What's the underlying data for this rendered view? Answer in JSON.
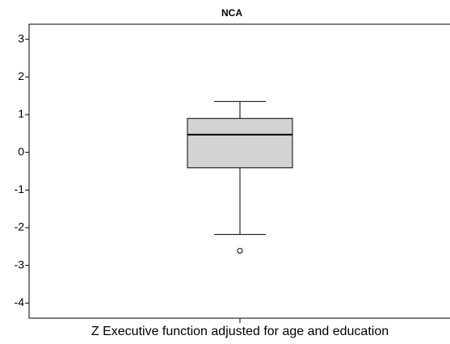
{
  "chart_data": {
    "type": "box",
    "title": "NCA",
    "xlabel": "Z Executive function adjusted for age and education",
    "series": [
      {
        "min": -2.18,
        "q1": -0.41,
        "median": 0.47,
        "q3": 0.9,
        "max": 1.35,
        "outliers": [
          -2.61
        ],
        "color": "#d3d3d3"
      }
    ],
    "ylim": [
      -4.4,
      3.4
    ],
    "yticks": [
      3,
      2,
      1,
      0,
      -1,
      -2,
      -3,
      -4
    ],
    "grid": false
  }
}
